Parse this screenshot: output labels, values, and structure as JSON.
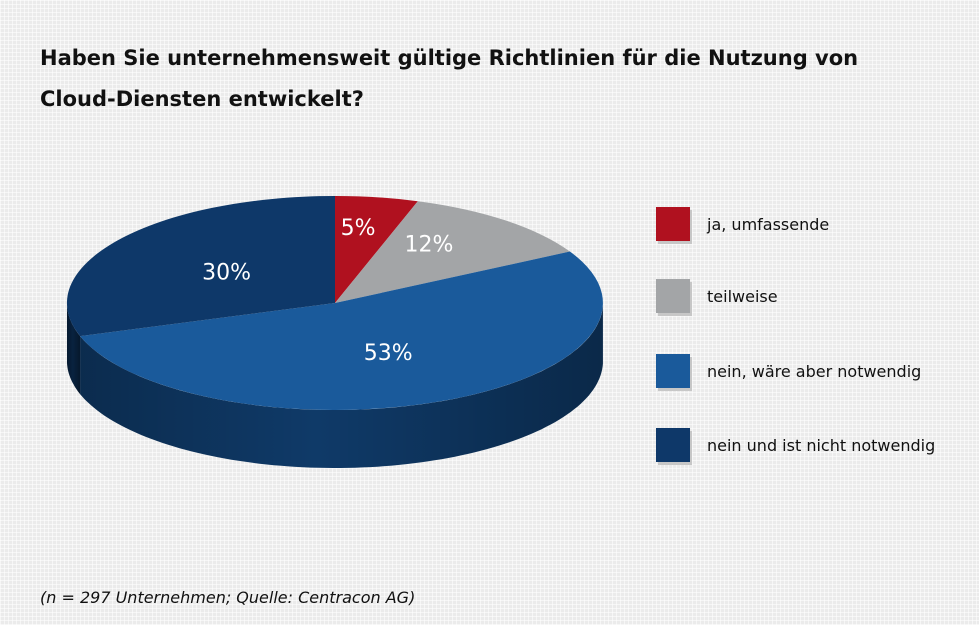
{
  "chart_data": {
    "type": "pie",
    "title_lines": [
      "Haben Sie unternehmensweit gültige Richtlinien für die Nutzung von",
      "Cloud-Diensten entwickelt?"
    ],
    "slices": [
      {
        "label": "ja, umfassende",
        "value": 5,
        "display": "5%",
        "color": "#b0111f",
        "dark": "#6e0a13"
      },
      {
        "label": "teilweise",
        "value": 12,
        "display": "12%",
        "color": "#a3a5a7",
        "dark": "#6f7173"
      },
      {
        "label": "nein, wäre aber notwendig",
        "value": 53,
        "display": "53%",
        "color": "#1a5a9b",
        "dark": "#0f3a68"
      },
      {
        "label": "nein und ist nicht notwendig",
        "value": 30,
        "display": "30%",
        "color": "#0e3869",
        "dark": "#08223f"
      }
    ],
    "legend_position": "right",
    "three_d": true
  },
  "source_note": "(n = 297 Unternehmen; Quelle: Centracon AG)"
}
